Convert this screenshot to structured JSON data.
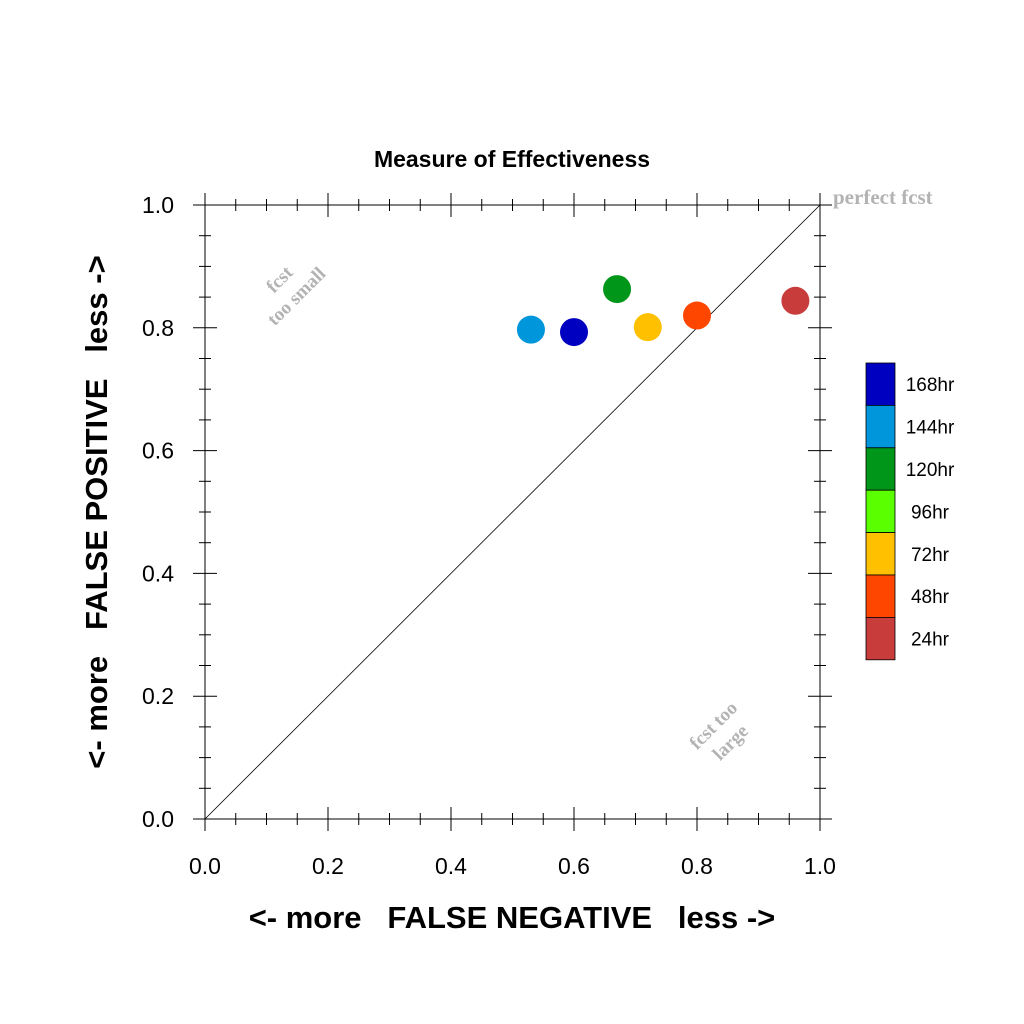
{
  "chart_data": {
    "type": "scatter",
    "title": "Measure of Effectiveness",
    "xlabel": "<- more   FALSE NEGATIVE   less ->",
    "ylabel": "<- more   FALSE POSITIVE   less ->",
    "xlim": [
      0.0,
      1.0
    ],
    "ylim": [
      0.0,
      1.0
    ],
    "x_ticks": [
      "0.0",
      "0.2",
      "0.4",
      "0.6",
      "0.8",
      "1.0"
    ],
    "y_ticks": [
      "0.0",
      "0.2",
      "0.4",
      "0.6",
      "0.8",
      "1.0"
    ],
    "grid": false,
    "diagonal": true,
    "annotations": {
      "perfect": "perfect fcst",
      "small": [
        "fcst",
        "too small"
      ],
      "large": [
        "fcst too",
        "large"
      ]
    },
    "legend_position": "right",
    "series": [
      {
        "name": "168hr",
        "color": "#0000c0",
        "x": 0.6,
        "y": 0.793
      },
      {
        "name": "144hr",
        "color": "#0096dc",
        "x": 0.53,
        "y": 0.797
      },
      {
        "name": "120hr",
        "color": "#009619",
        "x": 0.67,
        "y": 0.863
      },
      {
        "name": "96hr",
        "color": "#5aff00",
        "x": null,
        "y": null
      },
      {
        "name": "72hr",
        "color": "#ffc000",
        "x": 0.72,
        "y": 0.801
      },
      {
        "name": "48hr",
        "color": "#ff4600",
        "x": 0.8,
        "y": 0.82
      },
      {
        "name": "24hr",
        "color": "#c83c3c",
        "x": 0.96,
        "y": 0.844
      }
    ]
  }
}
